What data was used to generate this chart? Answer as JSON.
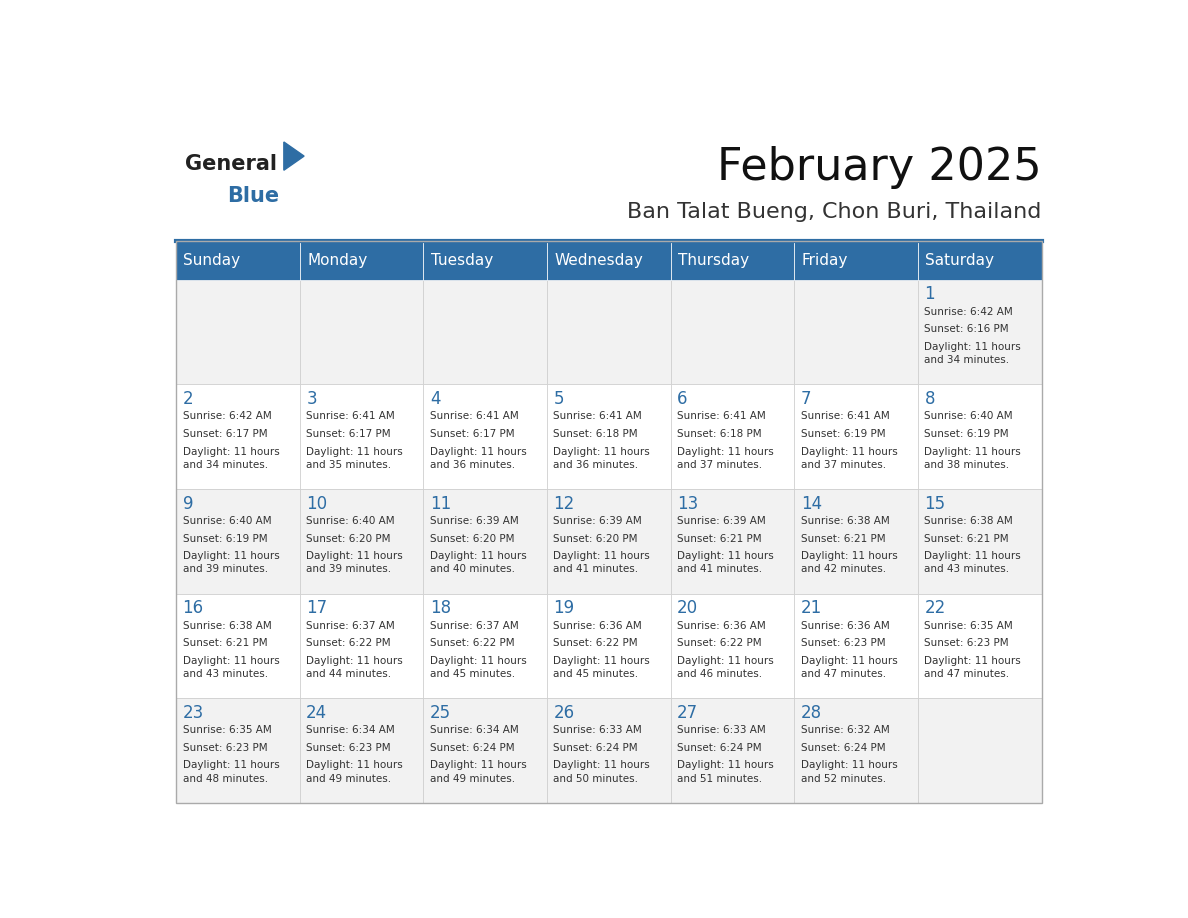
{
  "title": "February 2025",
  "subtitle": "Ban Talat Bueng, Chon Buri, Thailand",
  "header_color": "#2E6DA4",
  "header_text_color": "#FFFFFF",
  "cell_bg_even": "#F2F2F2",
  "cell_bg_odd": "#FFFFFF",
  "day_number_color": "#2E6DA4",
  "cell_text_color": "#333333",
  "days_of_week": [
    "Sunday",
    "Monday",
    "Tuesday",
    "Wednesday",
    "Thursday",
    "Friday",
    "Saturday"
  ],
  "logo_color": "#2E6DA4",
  "calendar_data": [
    [
      null,
      null,
      null,
      null,
      null,
      null,
      {
        "day": 1,
        "sunrise": "6:42 AM",
        "sunset": "6:16 PM",
        "daylight": "11 hours and 34 minutes."
      }
    ],
    [
      {
        "day": 2,
        "sunrise": "6:42 AM",
        "sunset": "6:17 PM",
        "daylight": "11 hours and 34 minutes."
      },
      {
        "day": 3,
        "sunrise": "6:41 AM",
        "sunset": "6:17 PM",
        "daylight": "11 hours and 35 minutes."
      },
      {
        "day": 4,
        "sunrise": "6:41 AM",
        "sunset": "6:17 PM",
        "daylight": "11 hours and 36 minutes."
      },
      {
        "day": 5,
        "sunrise": "6:41 AM",
        "sunset": "6:18 PM",
        "daylight": "11 hours and 36 minutes."
      },
      {
        "day": 6,
        "sunrise": "6:41 AM",
        "sunset": "6:18 PM",
        "daylight": "11 hours and 37 minutes."
      },
      {
        "day": 7,
        "sunrise": "6:41 AM",
        "sunset": "6:19 PM",
        "daylight": "11 hours and 37 minutes."
      },
      {
        "day": 8,
        "sunrise": "6:40 AM",
        "sunset": "6:19 PM",
        "daylight": "11 hours and 38 minutes."
      }
    ],
    [
      {
        "day": 9,
        "sunrise": "6:40 AM",
        "sunset": "6:19 PM",
        "daylight": "11 hours and 39 minutes."
      },
      {
        "day": 10,
        "sunrise": "6:40 AM",
        "sunset": "6:20 PM",
        "daylight": "11 hours and 39 minutes."
      },
      {
        "day": 11,
        "sunrise": "6:39 AM",
        "sunset": "6:20 PM",
        "daylight": "11 hours and 40 minutes."
      },
      {
        "day": 12,
        "sunrise": "6:39 AM",
        "sunset": "6:20 PM",
        "daylight": "11 hours and 41 minutes."
      },
      {
        "day": 13,
        "sunrise": "6:39 AM",
        "sunset": "6:21 PM",
        "daylight": "11 hours and 41 minutes."
      },
      {
        "day": 14,
        "sunrise": "6:38 AM",
        "sunset": "6:21 PM",
        "daylight": "11 hours and 42 minutes."
      },
      {
        "day": 15,
        "sunrise": "6:38 AM",
        "sunset": "6:21 PM",
        "daylight": "11 hours and 43 minutes."
      }
    ],
    [
      {
        "day": 16,
        "sunrise": "6:38 AM",
        "sunset": "6:21 PM",
        "daylight": "11 hours and 43 minutes."
      },
      {
        "day": 17,
        "sunrise": "6:37 AM",
        "sunset": "6:22 PM",
        "daylight": "11 hours and 44 minutes."
      },
      {
        "day": 18,
        "sunrise": "6:37 AM",
        "sunset": "6:22 PM",
        "daylight": "11 hours and 45 minutes."
      },
      {
        "day": 19,
        "sunrise": "6:36 AM",
        "sunset": "6:22 PM",
        "daylight": "11 hours and 45 minutes."
      },
      {
        "day": 20,
        "sunrise": "6:36 AM",
        "sunset": "6:22 PM",
        "daylight": "11 hours and 46 minutes."
      },
      {
        "day": 21,
        "sunrise": "6:36 AM",
        "sunset": "6:23 PM",
        "daylight": "11 hours and 47 minutes."
      },
      {
        "day": 22,
        "sunrise": "6:35 AM",
        "sunset": "6:23 PM",
        "daylight": "11 hours and 47 minutes."
      }
    ],
    [
      {
        "day": 23,
        "sunrise": "6:35 AM",
        "sunset": "6:23 PM",
        "daylight": "11 hours and 48 minutes."
      },
      {
        "day": 24,
        "sunrise": "6:34 AM",
        "sunset": "6:23 PM",
        "daylight": "11 hours and 49 minutes."
      },
      {
        "day": 25,
        "sunrise": "6:34 AM",
        "sunset": "6:24 PM",
        "daylight": "11 hours and 49 minutes."
      },
      {
        "day": 26,
        "sunrise": "6:33 AM",
        "sunset": "6:24 PM",
        "daylight": "11 hours and 50 minutes."
      },
      {
        "day": 27,
        "sunrise": "6:33 AM",
        "sunset": "6:24 PM",
        "daylight": "11 hours and 51 minutes."
      },
      {
        "day": 28,
        "sunrise": "6:32 AM",
        "sunset": "6:24 PM",
        "daylight": "11 hours and 52 minutes."
      },
      null
    ]
  ]
}
